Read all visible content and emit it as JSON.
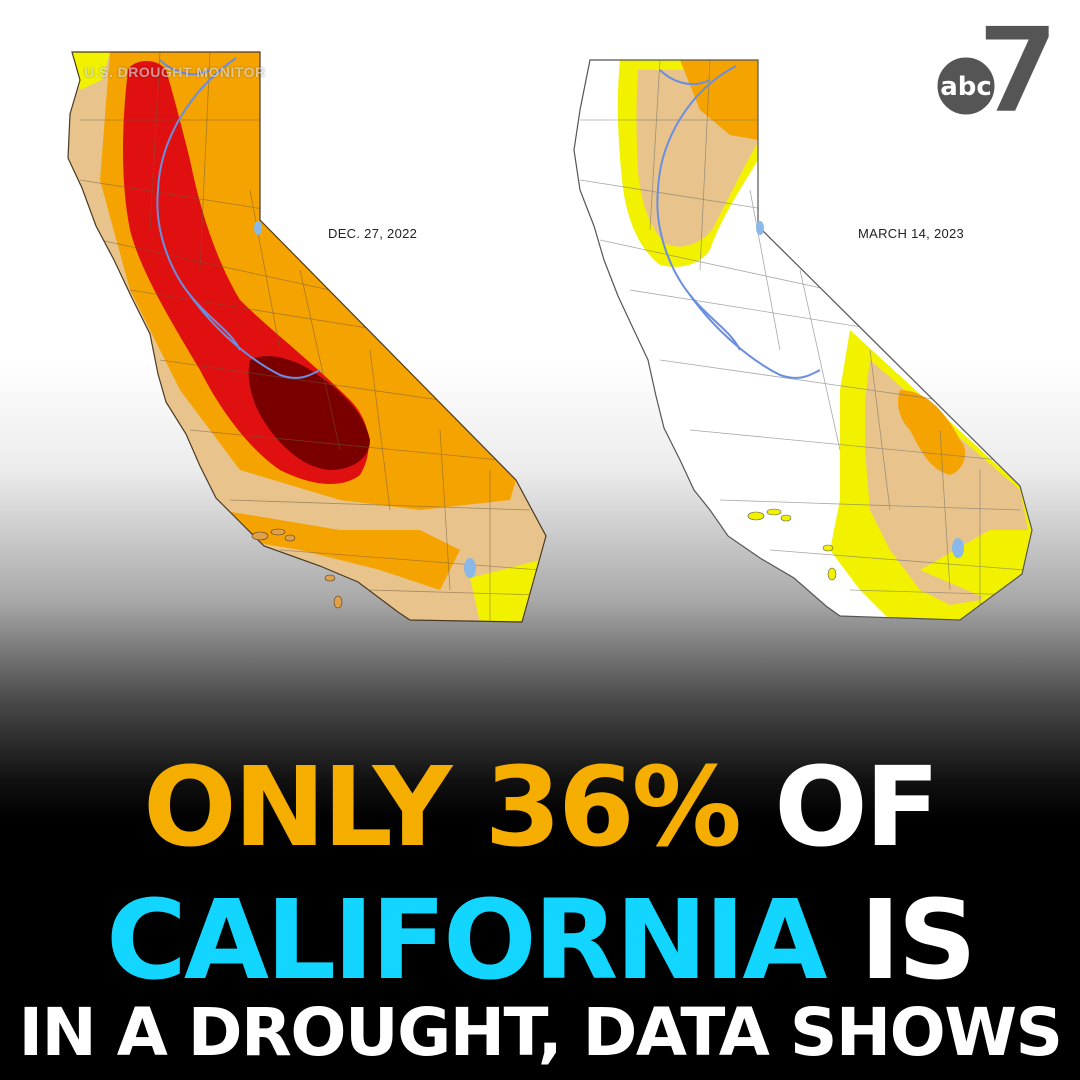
{
  "maps": {
    "left": {
      "date": "DEC. 27, 2022",
      "watermark": "U.S. DROUGHT MONITOR"
    },
    "right": {
      "date": "MARCH 14, 2023"
    }
  },
  "legend_colors": {
    "abnormally_dry": "#f2f200",
    "moderate": "#e8c48c",
    "severe": "#f5a300",
    "extreme": "#e01010",
    "exceptional": "#7a0000",
    "none": "#ffffff"
  },
  "logo": {
    "text": "abc",
    "numeral": "7"
  },
  "headline": {
    "line1": {
      "part1": "ONLY 36%",
      "part2": "OF"
    },
    "line2": {
      "part1": "CALIFORNIA",
      "part2": "IS"
    },
    "line3": "IN A DROUGHT, DATA SHOWS"
  }
}
